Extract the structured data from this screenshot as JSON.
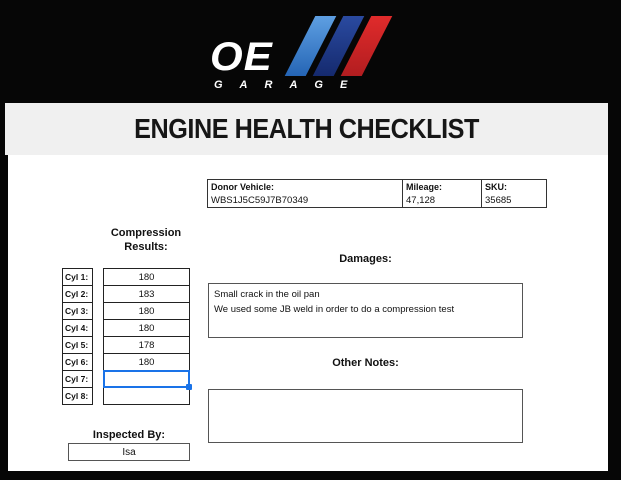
{
  "logo": {
    "brand": "OE",
    "subtitle": "GARAGE",
    "stripes": [
      {
        "name": "light-blue-stripe",
        "top": "#5e9fe2",
        "bottom": "#2565b5"
      },
      {
        "name": "dark-blue-stripe",
        "top": "#2a4aa0",
        "bottom": "#152a6e"
      },
      {
        "name": "red-stripe",
        "top": "#e02b2b",
        "bottom": "#b21d20"
      }
    ]
  },
  "header": {
    "title": "ENGINE HEALTH CHECKLIST"
  },
  "vehicle_info": {
    "columns": [
      {
        "label": "Donor Vehicle:",
        "value": "WBS1J5C59J7B70349"
      },
      {
        "label": "Mileage:",
        "value": "47,128"
      },
      {
        "label": "SKU:",
        "value": "35685"
      }
    ]
  },
  "compression": {
    "label": "Compression Results:",
    "rows": [
      {
        "label": "Cyl 1:",
        "value": "180"
      },
      {
        "label": "Cyl 2:",
        "value": "183"
      },
      {
        "label": "Cyl 3:",
        "value": "180"
      },
      {
        "label": "Cyl 4:",
        "value": "180"
      },
      {
        "label": "Cyl 5:",
        "value": "178"
      },
      {
        "label": "Cyl 6:",
        "value": "180"
      },
      {
        "label": "Cyl 7:",
        "value": ""
      },
      {
        "label": "Cyl 8:",
        "value": ""
      }
    ],
    "selected_index": 6
  },
  "damages": {
    "label": "Damages:",
    "lines": [
      "Small crack in the oil pan",
      "We used some JB weld in order to do a compression test"
    ]
  },
  "other_notes": {
    "label": "Other Notes:",
    "text": ""
  },
  "inspected_by": {
    "label": "Inspected By:",
    "value": "Isa"
  },
  "colors": {
    "selection_blue": "#1a73e8",
    "header_background": "#f0f0f0",
    "page_background": "#ffffff",
    "frame_background": "#060606"
  }
}
